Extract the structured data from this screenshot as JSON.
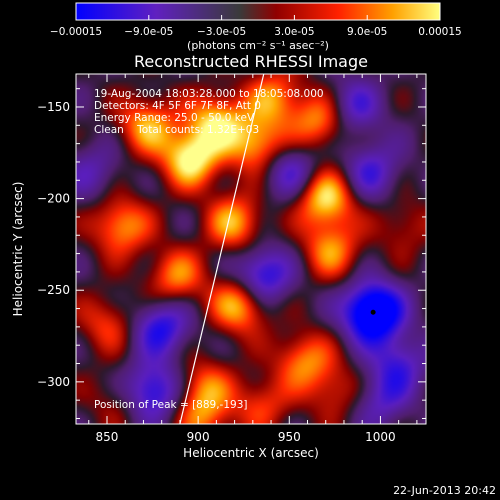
{
  "chart_data": {
    "type": "heatmap",
    "title": "Reconstructed RHESSI Image",
    "xlabel": "Heliocentric X (arcsec)",
    "ylabel": "Heliocentric Y (arcsec)",
    "xlim": [
      833,
      1025
    ],
    "ylim": [
      -323,
      -132
    ],
    "xticks": [
      850,
      900,
      950,
      1000
    ],
    "yticks": [
      -150,
      -200,
      -250,
      -300
    ],
    "colorbar": {
      "range": [
        -0.00015,
        0.00015
      ],
      "tick_labels": [
        "-0.00015",
        "-9.0e-05",
        "-3.0e-05",
        "3.0e-05",
        "9.0e-05",
        "0.00015"
      ],
      "tick_values": [
        -0.00015,
        -9e-05,
        -3e-05,
        3e-05,
        9e-05,
        0.00015
      ],
      "units_label": "(photons cm⁻² s⁻¹ asec⁻²)",
      "colormap": [
        "#0000ff",
        "#6020c0",
        "#404040",
        "#900000",
        "#ff2000",
        "#ffa000",
        "#ffff80"
      ]
    },
    "info_lines": [
      "19-Aug-2004 18:03:28.000 to 18:05:08.000",
      "Detectors: 4F 5F 6F 7F 8F, Att 0",
      "Energy Range: 25.0 - 50.0 keV",
      "Clean    Total counts: 1.32E+03"
    ],
    "peak_label": "Position of Peak = [889,-193]",
    "peak_position": [
      889,
      -193
    ],
    "limb_line": [
      [
        890,
        -323
      ],
      [
        936,
        -132
      ]
    ],
    "marker_point": [
      996,
      -262
    ],
    "sources": [
      {
        "x": 872,
        "y": -160,
        "amp": 0.8
      },
      {
        "x": 896,
        "y": -178,
        "amp": 1.1
      },
      {
        "x": 910,
        "y": -158,
        "amp": 0.9
      },
      {
        "x": 932,
        "y": -170,
        "amp": 0.85
      },
      {
        "x": 942,
        "y": -145,
        "amp": 0.7
      },
      {
        "x": 967,
        "y": -158,
        "amp": 0.75
      },
      {
        "x": 970,
        "y": -200,
        "amp": 1.0
      },
      {
        "x": 973,
        "y": -228,
        "amp": 0.7
      },
      {
        "x": 858,
        "y": -215,
        "amp": 0.8
      },
      {
        "x": 920,
        "y": -213,
        "amp": 0.8
      },
      {
        "x": 888,
        "y": -243,
        "amp": 0.7
      },
      {
        "x": 923,
        "y": -258,
        "amp": 0.9
      },
      {
        "x": 850,
        "y": -268,
        "amp": 0.5
      },
      {
        "x": 958,
        "y": -288,
        "amp": 0.7
      },
      {
        "x": 903,
        "y": -303,
        "amp": 0.6
      },
      {
        "x": 935,
        "y": -312,
        "amp": 0.5
      },
      {
        "x": 975,
        "y": -305,
        "amp": 0.45
      },
      {
        "x": 903,
        "y": -320,
        "amp": 0.55
      },
      {
        "x": 1013,
        "y": -215,
        "amp": 0.35
      },
      {
        "x": 855,
        "y": -310,
        "amp": 0.3
      },
      {
        "x": 996,
        "y": -262,
        "amp": -1.5
      },
      {
        "x": 875,
        "y": -305,
        "amp": -0.9
      },
      {
        "x": 935,
        "y": -242,
        "amp": -0.9
      },
      {
        "x": 880,
        "y": -270,
        "amp": -0.8
      },
      {
        "x": 985,
        "y": -150,
        "amp": -0.6
      },
      {
        "x": 995,
        "y": -185,
        "amp": -0.6
      },
      {
        "x": 1010,
        "y": -290,
        "amp": -0.6
      },
      {
        "x": 842,
        "y": -185,
        "amp": -0.4
      },
      {
        "x": 951,
        "y": -185,
        "amp": -0.6
      },
      {
        "x": 1000,
        "y": -310,
        "amp": -0.5
      }
    ]
  },
  "footer": {
    "timestamp": "22-Jun-2013 20:42"
  }
}
